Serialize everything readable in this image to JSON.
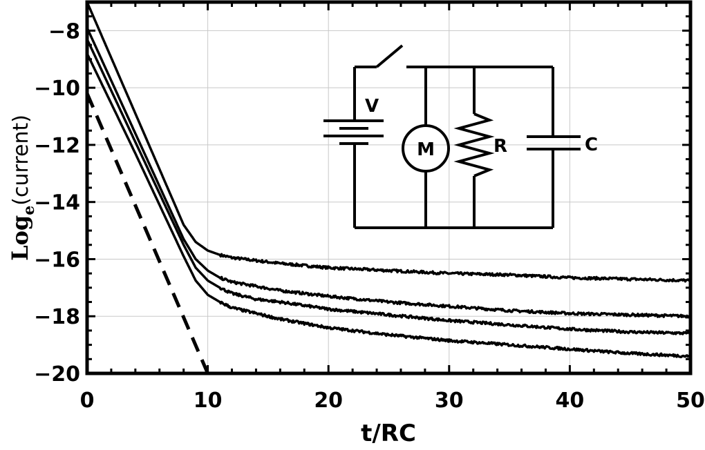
{
  "chart_data": {
    "type": "line",
    "xlabel": "t/RC",
    "ylabel": {
      "prefix": "Log",
      "subscript": "e",
      "suffix": "(current)"
    },
    "xlim": [
      0,
      50
    ],
    "ylim": [
      -20,
      -7
    ],
    "x_ticks": [
      "0",
      "10",
      "20",
      "30",
      "40",
      "50"
    ],
    "y_ticks": [
      "−8",
      "−10",
      "−12",
      "−14",
      "−16",
      "−18",
      "−20"
    ],
    "x_tick_values": [
      0,
      10,
      20,
      30,
      40,
      50
    ],
    "y_tick_values": [
      -8,
      -10,
      -12,
      -14,
      -16,
      -18,
      -20
    ],
    "grid": true,
    "series": [
      {
        "style": "solid",
        "x": [
          0,
          2,
          4,
          6,
          8,
          9,
          10,
          11,
          12,
          14,
          16,
          20,
          25,
          30,
          35,
          40,
          45,
          50
        ],
        "y": [
          -7.0,
          -8.95,
          -10.9,
          -12.85,
          -14.8,
          -15.4,
          -15.7,
          -15.85,
          -15.95,
          -16.05,
          -16.15,
          -16.3,
          -16.4,
          -16.5,
          -16.55,
          -16.65,
          -16.7,
          -16.75
        ]
      },
      {
        "style": "solid",
        "x": [
          0,
          2,
          4,
          6,
          8,
          9,
          10,
          11,
          12,
          14,
          16,
          20,
          25,
          30,
          35,
          40,
          45,
          50
        ],
        "y": [
          -7.9,
          -9.75,
          -11.6,
          -13.45,
          -15.3,
          -16.0,
          -16.4,
          -16.65,
          -16.8,
          -16.95,
          -17.1,
          -17.3,
          -17.5,
          -17.65,
          -17.8,
          -17.9,
          -17.95,
          -18.0
        ]
      },
      {
        "style": "solid",
        "x": [
          0,
          2,
          4,
          6,
          8,
          9,
          10,
          11,
          12,
          14,
          16,
          20,
          25,
          30,
          35,
          40,
          45,
          50
        ],
        "y": [
          -8.3,
          -10.1,
          -11.9,
          -13.7,
          -15.5,
          -16.3,
          -16.75,
          -17.0,
          -17.2,
          -17.4,
          -17.5,
          -17.75,
          -17.95,
          -18.15,
          -18.3,
          -18.45,
          -18.55,
          -18.6
        ]
      },
      {
        "style": "solid",
        "x": [
          0,
          2,
          4,
          6,
          8,
          9,
          10,
          11,
          12,
          14,
          16,
          20,
          25,
          30,
          35,
          40,
          45,
          50
        ],
        "y": [
          -8.8,
          -10.55,
          -12.3,
          -14.1,
          -15.9,
          -16.75,
          -17.25,
          -17.5,
          -17.7,
          -17.9,
          -18.1,
          -18.4,
          -18.65,
          -18.85,
          -19.0,
          -19.15,
          -19.3,
          -19.4
        ]
      },
      {
        "style": "dashed",
        "x": [
          0,
          10
        ],
        "y": [
          -10.2,
          -20.0
        ]
      }
    ],
    "inset_circuit": {
      "labels": {
        "battery": "V",
        "motor": "M",
        "resistor": "R",
        "capacitor": "C"
      }
    }
  }
}
